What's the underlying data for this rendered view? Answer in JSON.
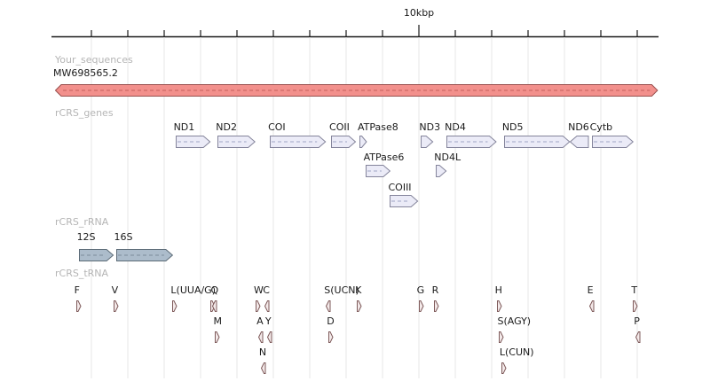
{
  "ruler": {
    "label": "10kbp",
    "labeled_tick_kbp": 10,
    "tick_interval_kbp": 1,
    "tick_count": 16,
    "start_kbp": 0,
    "end_kbp": 16.6
  },
  "tracks": [
    {
      "id": "your_sequences",
      "name": "Your_sequences",
      "kind": "sequence",
      "features": [
        {
          "label": "MW698565.2",
          "start_kbp": 0.0,
          "end_kbp": 16.569,
          "strand": "both",
          "row": 0
        }
      ]
    },
    {
      "id": "rcrs_genes",
      "name": "rCRS_genes",
      "kind": "gene",
      "features": [
        {
          "label": "ND1",
          "start_kbp": 3.307,
          "end_kbp": 4.262,
          "strand": "+",
          "row": 0
        },
        {
          "label": "ND2",
          "start_kbp": 4.47,
          "end_kbp": 5.511,
          "strand": "+",
          "row": 0
        },
        {
          "label": "COI",
          "start_kbp": 5.904,
          "end_kbp": 7.445,
          "strand": "+",
          "row": 0
        },
        {
          "label": "COII",
          "start_kbp": 7.586,
          "end_kbp": 8.269,
          "strand": "+",
          "row": 0
        },
        {
          "label": "ATPase8",
          "start_kbp": 8.366,
          "end_kbp": 8.572,
          "strand": "+",
          "row": 0
        },
        {
          "label": "ATPase6",
          "start_kbp": 8.527,
          "end_kbp": 9.207,
          "strand": "+",
          "row": 1
        },
        {
          "label": "COIII",
          "start_kbp": 9.207,
          "end_kbp": 9.99,
          "strand": "+",
          "row": 2
        },
        {
          "label": "ND3",
          "start_kbp": 10.059,
          "end_kbp": 10.404,
          "strand": "+",
          "row": 0
        },
        {
          "label": "ND4L",
          "start_kbp": 10.47,
          "end_kbp": 10.766,
          "strand": "+",
          "row": 1
        },
        {
          "label": "ND4",
          "start_kbp": 10.76,
          "end_kbp": 12.137,
          "strand": "+",
          "row": 0
        },
        {
          "label": "ND5",
          "start_kbp": 12.337,
          "end_kbp": 14.148,
          "strand": "+",
          "row": 0
        },
        {
          "label": "ND6",
          "start_kbp": 14.149,
          "end_kbp": 14.673,
          "strand": "-",
          "row": 0
        },
        {
          "label": "Cytb",
          "start_kbp": 14.747,
          "end_kbp": 15.887,
          "strand": "+",
          "row": 0
        }
      ]
    },
    {
      "id": "rcrs_rrna",
      "name": "rCRS_rRNA",
      "kind": "rrna",
      "features": [
        {
          "label": "12S",
          "start_kbp": 0.648,
          "end_kbp": 1.601,
          "strand": "+",
          "row": 0
        },
        {
          "label": "16S",
          "start_kbp": 1.671,
          "end_kbp": 3.229,
          "strand": "+",
          "row": 0
        }
      ]
    },
    {
      "id": "rcrs_trna",
      "name": "rCRS_tRNA",
      "kind": "trna",
      "features": [
        {
          "label": "F",
          "start_kbp": 0.577,
          "end_kbp": 0.647,
          "strand": "+",
          "row": 0
        },
        {
          "label": "V",
          "start_kbp": 1.602,
          "end_kbp": 1.67,
          "strand": "+",
          "row": 0
        },
        {
          "label": "L(UUA/G)",
          "start_kbp": 3.23,
          "end_kbp": 3.304,
          "strand": "+",
          "row": 0
        },
        {
          "label": "",
          "start_kbp": 4.263,
          "end_kbp": 4.331,
          "strand": "+",
          "row": 0
        },
        {
          "label": "Q",
          "start_kbp": 4.329,
          "end_kbp": 4.4,
          "strand": "-",
          "row": 0
        },
        {
          "label": "M",
          "start_kbp": 4.402,
          "end_kbp": 4.469,
          "strand": "+",
          "row": 1
        },
        {
          "label": "W",
          "start_kbp": 5.512,
          "end_kbp": 5.579,
          "strand": "+",
          "row": 0
        },
        {
          "label": "A",
          "start_kbp": 5.587,
          "end_kbp": 5.655,
          "strand": "-",
          "row": 1
        },
        {
          "label": "N",
          "start_kbp": 5.657,
          "end_kbp": 5.729,
          "strand": "-",
          "row": 2
        },
        {
          "label": "C",
          "start_kbp": 5.761,
          "end_kbp": 5.826,
          "strand": "-",
          "row": 0
        },
        {
          "label": "Y",
          "start_kbp": 5.826,
          "end_kbp": 5.891,
          "strand": "-",
          "row": 1
        },
        {
          "label": "S(UCN)",
          "start_kbp": 7.446,
          "end_kbp": 7.514,
          "strand": "-",
          "row": 0
        },
        {
          "label": "D",
          "start_kbp": 7.518,
          "end_kbp": 7.585,
          "strand": "+",
          "row": 1
        },
        {
          "label": "K",
          "start_kbp": 8.295,
          "end_kbp": 8.364,
          "strand": "+",
          "row": 0
        },
        {
          "label": "G",
          "start_kbp": 9.991,
          "end_kbp": 10.058,
          "strand": "+",
          "row": 0
        },
        {
          "label": "R",
          "start_kbp": 10.405,
          "end_kbp": 10.469,
          "strand": "+",
          "row": 0
        },
        {
          "label": "H",
          "start_kbp": 12.138,
          "end_kbp": 12.206,
          "strand": "+",
          "row": 0
        },
        {
          "label": "S(AGY)",
          "start_kbp": 12.207,
          "end_kbp": 12.265,
          "strand": "+",
          "row": 1
        },
        {
          "label": "L(CUN)",
          "start_kbp": 12.266,
          "end_kbp": 12.336,
          "strand": "+",
          "row": 2
        },
        {
          "label": "E",
          "start_kbp": 14.674,
          "end_kbp": 14.742,
          "strand": "-",
          "row": 0
        },
        {
          "label": "T",
          "start_kbp": 15.888,
          "end_kbp": 15.953,
          "strand": "+",
          "row": 0
        },
        {
          "label": "P",
          "start_kbp": 15.956,
          "end_kbp": 16.023,
          "strand": "-",
          "row": 1
        }
      ]
    }
  ],
  "colors": {
    "sequence_fill": "#F2908C",
    "sequence_stroke": "#99504E",
    "sequence_dash": "#C4605C",
    "gene_fill": "#EBEBF7",
    "gene_stroke": "#84849B",
    "gene_dash": "#9FA6C4",
    "rrna_fill": "#ACBCCB",
    "rrna_stroke": "#5C6B77",
    "rrna_dash": "#7C8C9B",
    "trna_fill": "#F4EAEA",
    "trna_stroke": "#7E5A5A",
    "trna_dash": "#A98C8C",
    "track_label": "#B5B5B5",
    "text": "#1A1A1A",
    "grid": "#E7E7E7",
    "axis": "#1A1A1A"
  }
}
